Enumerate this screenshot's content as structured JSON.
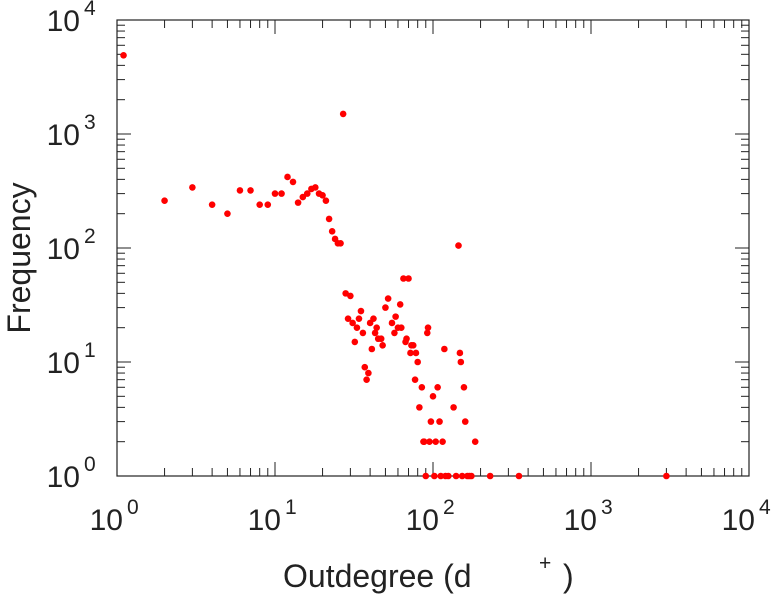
{
  "chart_data": {
    "type": "scatter",
    "xlabel": "Outdegree (d",
    "xlabel_sup": "+",
    "xlabel_close": ")",
    "ylabel": "Frequency",
    "x_scale": "log",
    "y_scale": "log",
    "xlim": [
      1,
      10000
    ],
    "ylim": [
      1,
      10000
    ],
    "x_ticks": [
      {
        "base": "10",
        "exp": "0",
        "value": 1
      },
      {
        "base": "10",
        "exp": "1",
        "value": 10
      },
      {
        "base": "10",
        "exp": "2",
        "value": 100
      },
      {
        "base": "10",
        "exp": "3",
        "value": 1000
      },
      {
        "base": "10",
        "exp": "4",
        "value": 10000
      }
    ],
    "y_ticks": [
      {
        "base": "10",
        "exp": "0",
        "value": 1
      },
      {
        "base": "10",
        "exp": "1",
        "value": 10
      },
      {
        "base": "10",
        "exp": "2",
        "value": 100
      },
      {
        "base": "10",
        "exp": "3",
        "value": 1000
      },
      {
        "base": "10",
        "exp": "4",
        "value": 10000
      }
    ],
    "grid": false,
    "marker_color": "#ff0000",
    "points": [
      [
        1.1,
        4900
      ],
      [
        2,
        260
      ],
      [
        3,
        340
      ],
      [
        4,
        240
      ],
      [
        5,
        200
      ],
      [
        6,
        320
      ],
      [
        7,
        320
      ],
      [
        8,
        240
      ],
      [
        9,
        240
      ],
      [
        10,
        300
      ],
      [
        11,
        300
      ],
      [
        12,
        420
      ],
      [
        13,
        380
      ],
      [
        14,
        250
      ],
      [
        15,
        280
      ],
      [
        16,
        300
      ],
      [
        17,
        330
      ],
      [
        18,
        340
      ],
      [
        19,
        300
      ],
      [
        20,
        290
      ],
      [
        21,
        260
      ],
      [
        22,
        180
      ],
      [
        23,
        140
      ],
      [
        24,
        120
      ],
      [
        25,
        110
      ],
      [
        26,
        110
      ],
      [
        27,
        1500
      ],
      [
        28,
        40
      ],
      [
        29,
        24
      ],
      [
        30,
        38
      ],
      [
        31,
        22
      ],
      [
        32,
        15
      ],
      [
        33,
        20
      ],
      [
        34,
        24
      ],
      [
        35,
        28
      ],
      [
        36,
        18
      ],
      [
        37,
        9
      ],
      [
        38,
        7
      ],
      [
        39,
        8
      ],
      [
        40,
        22
      ],
      [
        41,
        13
      ],
      [
        42,
        24
      ],
      [
        43,
        18
      ],
      [
        44,
        20
      ],
      [
        45,
        16
      ],
      [
        47,
        16
      ],
      [
        48,
        14
      ],
      [
        50,
        30
      ],
      [
        52,
        36
      ],
      [
        55,
        22
      ],
      [
        57,
        18
      ],
      [
        58,
        25
      ],
      [
        60,
        20
      ],
      [
        62,
        32
      ],
      [
        63,
        20
      ],
      [
        65,
        54
      ],
      [
        67,
        15
      ],
      [
        68,
        16
      ],
      [
        70,
        54
      ],
      [
        72,
        12
      ],
      [
        73,
        14
      ],
      [
        75,
        14
      ],
      [
        77,
        7
      ],
      [
        78,
        12
      ],
      [
        80,
        10
      ],
      [
        82,
        4
      ],
      [
        85,
        6
      ],
      [
        87,
        2
      ],
      [
        88,
        2
      ],
      [
        90,
        1
      ],
      [
        92,
        18
      ],
      [
        93,
        20
      ],
      [
        95,
        2
      ],
      [
        97,
        3
      ],
      [
        100,
        5
      ],
      [
        102,
        1
      ],
      [
        104,
        2
      ],
      [
        107,
        6
      ],
      [
        110,
        3
      ],
      [
        112,
        1
      ],
      [
        115,
        2
      ],
      [
        118,
        13
      ],
      [
        120,
        1
      ],
      [
        125,
        1
      ],
      [
        135,
        4
      ],
      [
        140,
        1
      ],
      [
        145,
        105
      ],
      [
        148,
        12
      ],
      [
        150,
        10
      ],
      [
        153,
        1
      ],
      [
        157,
        6
      ],
      [
        160,
        3
      ],
      [
        165,
        1
      ],
      [
        170,
        1
      ],
      [
        175,
        1
      ],
      [
        185,
        2
      ],
      [
        230,
        1
      ],
      [
        350,
        1
      ],
      [
        3000,
        1
      ]
    ]
  }
}
